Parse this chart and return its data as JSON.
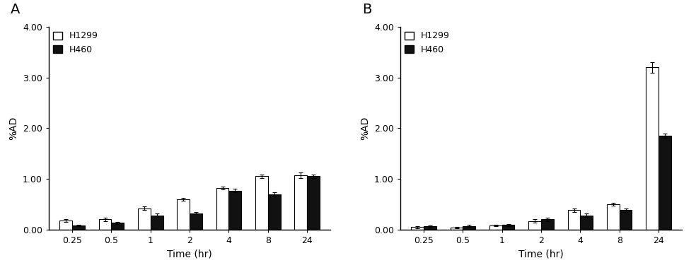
{
  "panel_A": {
    "label": "A",
    "time_points": [
      "0.25",
      "0.5",
      "1",
      "2",
      "4",
      "8",
      "24"
    ],
    "H1299_mean": [
      0.18,
      0.2,
      0.42,
      0.6,
      0.82,
      1.05,
      1.07
    ],
    "H1299_err": [
      0.03,
      0.03,
      0.04,
      0.03,
      0.03,
      0.04,
      0.05
    ],
    "H460_mean": [
      0.08,
      0.13,
      0.28,
      0.32,
      0.77,
      0.7,
      1.05
    ],
    "H460_err": [
      0.02,
      0.02,
      0.03,
      0.02,
      0.03,
      0.03,
      0.04
    ],
    "ylabel": "%AD",
    "xlabel": "Time (hr)",
    "ylim": [
      0,
      4.0
    ],
    "yticks": [
      0.0,
      1.0,
      2.0,
      3.0,
      4.0
    ]
  },
  "panel_B": {
    "label": "B",
    "time_points": [
      "0.25",
      "0.5",
      "1",
      "2",
      "4",
      "8",
      "24"
    ],
    "H1299_mean": [
      0.05,
      0.04,
      0.08,
      0.17,
      0.38,
      0.5,
      3.2
    ],
    "H1299_err": [
      0.02,
      0.01,
      0.02,
      0.04,
      0.04,
      0.03,
      0.1
    ],
    "H460_mean": [
      0.06,
      0.07,
      0.09,
      0.2,
      0.28,
      0.38,
      1.85
    ],
    "H460_err": [
      0.02,
      0.02,
      0.02,
      0.03,
      0.03,
      0.03,
      0.05
    ],
    "ylabel": "%AD",
    "xlabel": "Time (hr)",
    "ylim": [
      0,
      4.0
    ],
    "yticks": [
      0.0,
      1.0,
      2.0,
      3.0,
      4.0
    ]
  },
  "bar_width": 0.32,
  "color_H1299": "#ffffff",
  "color_H460": "#111111",
  "edge_color": "#000000",
  "legend_labels": [
    "H1299",
    "H460"
  ],
  "background_color": "#ffffff",
  "figsize": [
    9.84,
    3.82
  ],
  "dpi": 100
}
